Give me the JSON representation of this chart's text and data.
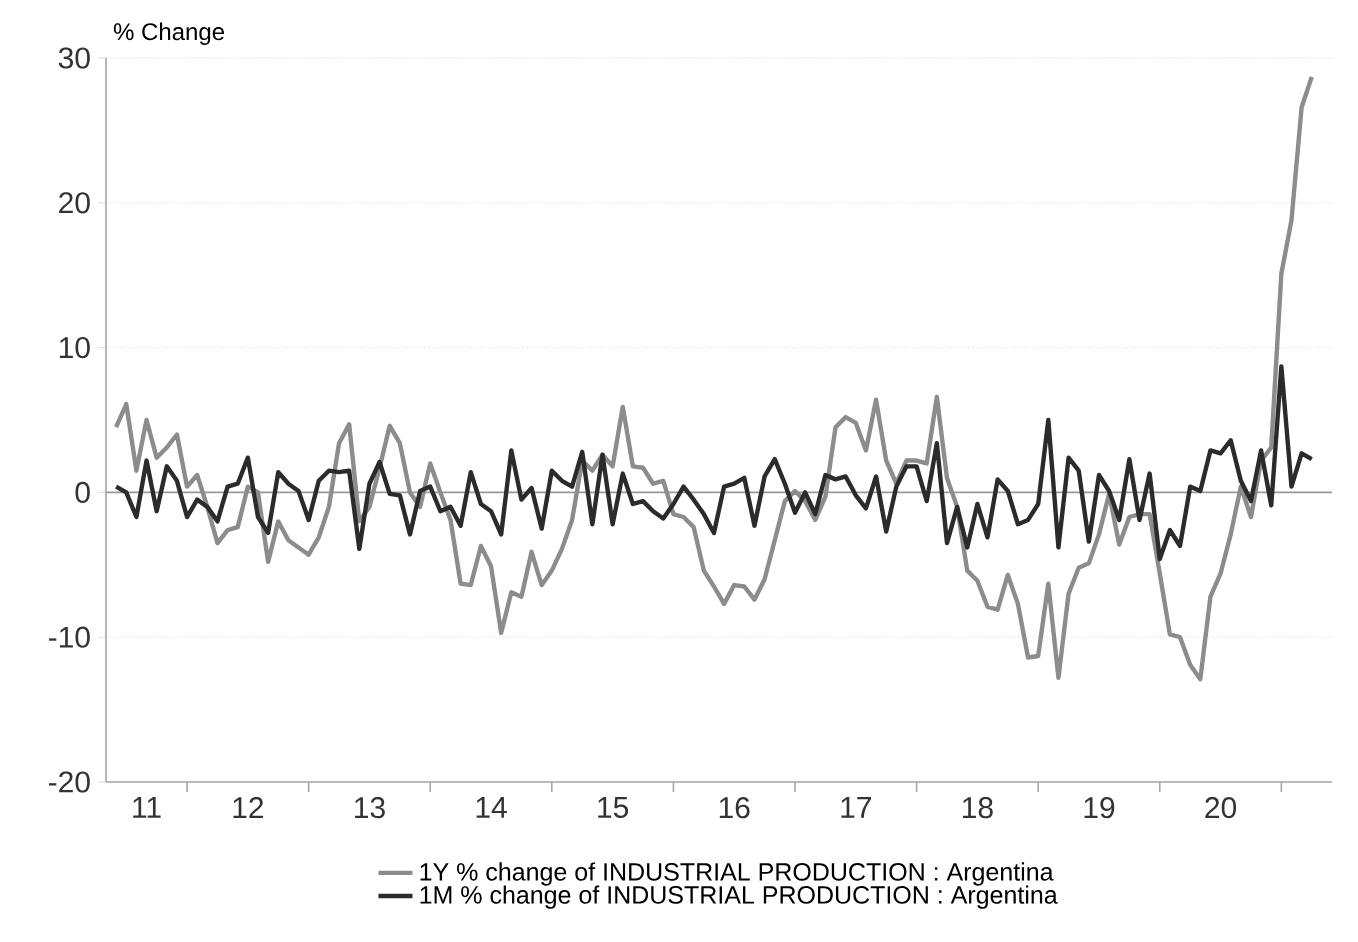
{
  "chart_data": {
    "type": "line",
    "ylabel": "% Change",
    "x": [
      "2011-06",
      "2011-07",
      "2011-08",
      "2011-09",
      "2011-10",
      "2011-11",
      "2011-12",
      "2012-01",
      "2012-02",
      "2012-03",
      "2012-04",
      "2012-05",
      "2012-06",
      "2012-07",
      "2012-08",
      "2012-09",
      "2012-10",
      "2012-11",
      "2012-12",
      "2013-01",
      "2013-02",
      "2013-03",
      "2013-04",
      "2013-05",
      "2013-06",
      "2013-07",
      "2013-08",
      "2013-09",
      "2013-10",
      "2013-11",
      "2013-12",
      "2014-01",
      "2014-02",
      "2014-03",
      "2014-04",
      "2014-05",
      "2014-06",
      "2014-07",
      "2014-08",
      "2014-09",
      "2014-10",
      "2014-11",
      "2014-12",
      "2015-01",
      "2015-02",
      "2015-03",
      "2015-04",
      "2015-05",
      "2015-06",
      "2015-07",
      "2015-08",
      "2015-09",
      "2015-10",
      "2015-11",
      "2015-12",
      "2016-01",
      "2016-02",
      "2016-03",
      "2016-04",
      "2016-05",
      "2016-06",
      "2016-07",
      "2016-08",
      "2016-09",
      "2016-10",
      "2016-11",
      "2016-12",
      "2017-01",
      "2017-02",
      "2017-03",
      "2017-04",
      "2017-05",
      "2017-06",
      "2017-07",
      "2017-08",
      "2017-09",
      "2017-10",
      "2017-11",
      "2017-12",
      "2018-01",
      "2018-02",
      "2018-03",
      "2018-04",
      "2018-05",
      "2018-06",
      "2018-07",
      "2018-08",
      "2018-09",
      "2018-10",
      "2018-11",
      "2018-12",
      "2019-01",
      "2019-02",
      "2019-03",
      "2019-04",
      "2019-05",
      "2019-06",
      "2019-07",
      "2019-08",
      "2019-09",
      "2019-10",
      "2019-11",
      "2019-12",
      "2020-01",
      "2020-02",
      "2020-03",
      "2020-04",
      "2020-05",
      "2020-06",
      "2020-07",
      "2020-08",
      "2020-09",
      "2020-10",
      "2020-11",
      "2020-12",
      "2021-01",
      "2021-02",
      "2021-03",
      "2021-04"
    ],
    "series": [
      {
        "name": "1Y % change of INDUSTRIAL PRODUCTION : Argentina",
        "color": "#8c8c8c",
        "values": [
          4.5,
          6.1,
          1.5,
          5.0,
          2.4,
          3.1,
          4.0,
          0.4,
          1.2,
          -1.0,
          -3.5,
          -2.6,
          -2.4,
          0.4,
          0.0,
          -4.8,
          -2.0,
          -3.3,
          -3.8,
          -4.3,
          -3.1,
          -1.0,
          3.4,
          4.7,
          -2.0,
          -1.0,
          1.7,
          4.6,
          3.4,
          0.0,
          -1.0,
          2.0,
          0.0,
          -1.9,
          -6.3,
          -6.4,
          -3.7,
          -5.1,
          -9.7,
          -6.9,
          -7.2,
          -4.1,
          -6.4,
          -5.4,
          -3.9,
          -1.9,
          2.2,
          1.5,
          2.6,
          1.8,
          5.9,
          1.8,
          1.7,
          0.6,
          0.8,
          -1.5,
          -1.7,
          -2.4,
          -5.4,
          -6.5,
          -7.7,
          -6.4,
          -6.5,
          -7.4,
          -6.0,
          -3.3,
          -0.6,
          0.1,
          -0.6,
          -1.9,
          -0.3,
          4.5,
          5.2,
          4.8,
          2.9,
          6.4,
          2.2,
          0.6,
          2.2,
          2.2,
          2.0,
          6.6,
          1.0,
          -1.0,
          -5.4,
          -6.1,
          -7.9,
          -8.1,
          -5.7,
          -7.7,
          -11.4,
          -11.3,
          -6.3,
          -12.8,
          -7.0,
          -5.2,
          -4.9,
          -2.9,
          -0.1,
          -3.6,
          -1.7,
          -1.5,
          -1.5,
          -5.6,
          -9.8,
          -10.0,
          -11.9,
          -12.9,
          -7.2,
          -5.6,
          -2.9,
          0.4,
          -1.7,
          2.2,
          3.1,
          15.1,
          18.8,
          26.6,
          28.7
        ]
      },
      {
        "name": "1M % change of INDUSTRIAL PRODUCTION : Argentina",
        "color": "#2b2b2b",
        "values": [
          0.4,
          0.0,
          -1.7,
          2.2,
          -1.3,
          1.8,
          0.8,
          -1.7,
          -0.5,
          -1.0,
          -2.0,
          0.4,
          0.6,
          2.4,
          -1.7,
          -2.8,
          1.4,
          0.6,
          0.1,
          -1.9,
          0.8,
          1.5,
          1.4,
          1.5,
          -3.9,
          0.6,
          2.1,
          -0.1,
          -0.2,
          -2.9,
          0.1,
          0.4,
          -1.3,
          -1.0,
          -2.3,
          1.4,
          -0.8,
          -1.3,
          -2.9,
          2.9,
          -0.5,
          0.3,
          -2.5,
          1.5,
          0.8,
          0.4,
          2.8,
          -2.2,
          2.6,
          -2.2,
          1.3,
          -0.8,
          -0.6,
          -1.3,
          -1.8,
          -0.8,
          0.4,
          -0.5,
          -1.5,
          -2.8,
          0.4,
          0.6,
          1.0,
          -2.3,
          1.1,
          2.3,
          0.6,
          -1.4,
          0.0,
          -1.5,
          1.2,
          0.9,
          1.1,
          -0.2,
          -1.1,
          1.1,
          -2.7,
          0.4,
          1.8,
          1.8,
          -0.6,
          3.4,
          -3.5,
          -1.0,
          -3.8,
          -0.8,
          -3.1,
          0.9,
          0.1,
          -2.2,
          -1.9,
          -0.8,
          5.0,
          -3.8,
          2.4,
          1.5,
          -3.4,
          1.2,
          0.1,
          -1.9,
          2.3,
          -1.9,
          1.3,
          -4.6,
          -2.6,
          -3.7,
          0.4,
          0.1,
          2.9,
          2.7,
          3.6,
          0.8,
          -0.6,
          2.9,
          -0.9,
          8.7,
          0.4,
          2.7,
          2.3
        ]
      }
    ],
    "xlim": [
      "2011-05",
      "2021-06"
    ],
    "xticks": [
      {
        "value": "2011-09",
        "label": "11"
      },
      {
        "value": "2012-01",
        "label": null
      },
      {
        "value": "2012-07",
        "label": "12"
      },
      {
        "value": "2013-01",
        "label": null
      },
      {
        "value": "2013-07",
        "label": "13"
      },
      {
        "value": "2014-01",
        "label": null
      },
      {
        "value": "2014-07",
        "label": "14"
      },
      {
        "value": "2015-01",
        "label": null
      },
      {
        "value": "2015-07",
        "label": "15"
      },
      {
        "value": "2016-01",
        "label": null
      },
      {
        "value": "2016-07",
        "label": "16"
      },
      {
        "value": "2017-01",
        "label": null
      },
      {
        "value": "2017-07",
        "label": "17"
      },
      {
        "value": "2018-01",
        "label": null
      },
      {
        "value": "2018-07",
        "label": "18"
      },
      {
        "value": "2019-01",
        "label": null
      },
      {
        "value": "2019-07",
        "label": "19"
      },
      {
        "value": "2020-01",
        "label": null
      },
      {
        "value": "2020-07",
        "label": "20"
      },
      {
        "value": "2021-01",
        "label": null
      }
    ],
    "ylim": [
      -20,
      30
    ],
    "yticks": [
      -20,
      -10,
      0,
      10,
      20,
      30
    ],
    "grid": "y",
    "legend": "bottom",
    "marker": "none",
    "line_style": "solid",
    "ref_lines": [
      {
        "axis": "y",
        "value": 0,
        "color": "#999999"
      }
    ]
  }
}
